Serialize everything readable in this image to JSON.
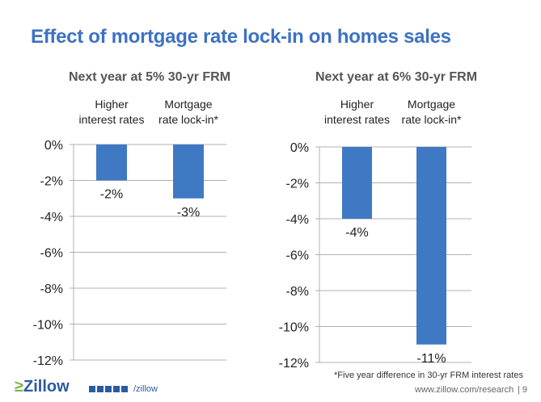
{
  "title": "Effect of mortgage rate lock-in on homes sales",
  "chart_data": [
    {
      "type": "bar",
      "title": "Next year at 5% 30-yr FRM",
      "categories": [
        "Higher interest rates",
        "Mortgage rate lock-in*"
      ],
      "category_lines": [
        [
          "Higher",
          "interest rates"
        ],
        [
          "Mortgage",
          "rate lock-in*"
        ]
      ],
      "values": [
        -2,
        -3
      ],
      "data_labels": [
        "-2%",
        "-3%"
      ],
      "ylim": [
        -12,
        0
      ],
      "yticks": [
        "0%",
        "-2%",
        "-4%",
        "-6%",
        "-8%",
        "-10%",
        "-12%"
      ],
      "color": "#3f79c4"
    },
    {
      "type": "bar",
      "title": "Next year at 6% 30-yr FRM",
      "categories": [
        "Higher interest rates",
        "Mortgage rate lock-in*"
      ],
      "category_lines": [
        [
          "Higher",
          "interest rates"
        ],
        [
          "Mortgage",
          "rate lock-in*"
        ]
      ],
      "values": [
        -4,
        -11
      ],
      "data_labels": [
        "-4%",
        "-11%"
      ],
      "ylim": [
        -12,
        0
      ],
      "yticks": [
        "0%",
        "-2%",
        "-4%",
        "-6%",
        "-8%",
        "-10%",
        "-12%"
      ],
      "color": "#3f79c4"
    }
  ],
  "footnote": "*Five year difference in 30-yr FRM interest rates",
  "footer": {
    "logo": "Zillow",
    "handle": "/zillow",
    "url": "www.zillow.com/research",
    "page": "| 9"
  }
}
